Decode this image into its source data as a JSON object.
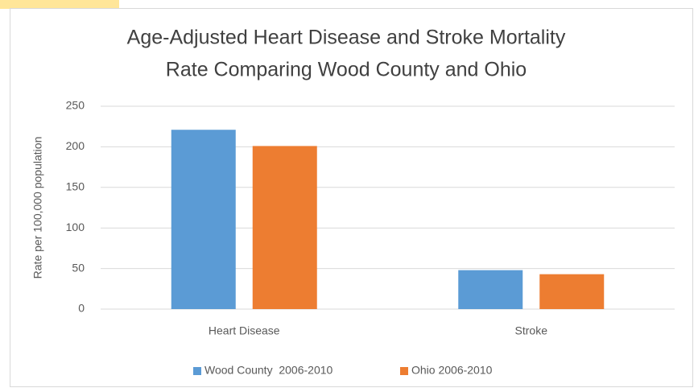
{
  "chart_data": {
    "type": "bar",
    "title": [
      "Age-Adjusted Heart Disease and Stroke Mortality",
      "Rate Comparing Wood County and Ohio"
    ],
    "y_label": "Rate per 100,000 population",
    "categories": [
      "Heart Disease",
      "Stroke"
    ],
    "series": [
      {
        "name": "Wood County  2006-2010",
        "color": "#5b9bd5",
        "values": [
          221,
          48
        ]
      },
      {
        "name": "Ohio 2006-2010",
        "color": "#ed7d31",
        "values": [
          201,
          43
        ]
      }
    ],
    "ylim": [
      0,
      250
    ],
    "yticks": [
      0,
      50,
      100,
      150,
      200,
      250
    ],
    "grid": true,
    "legend": "bottom"
  }
}
